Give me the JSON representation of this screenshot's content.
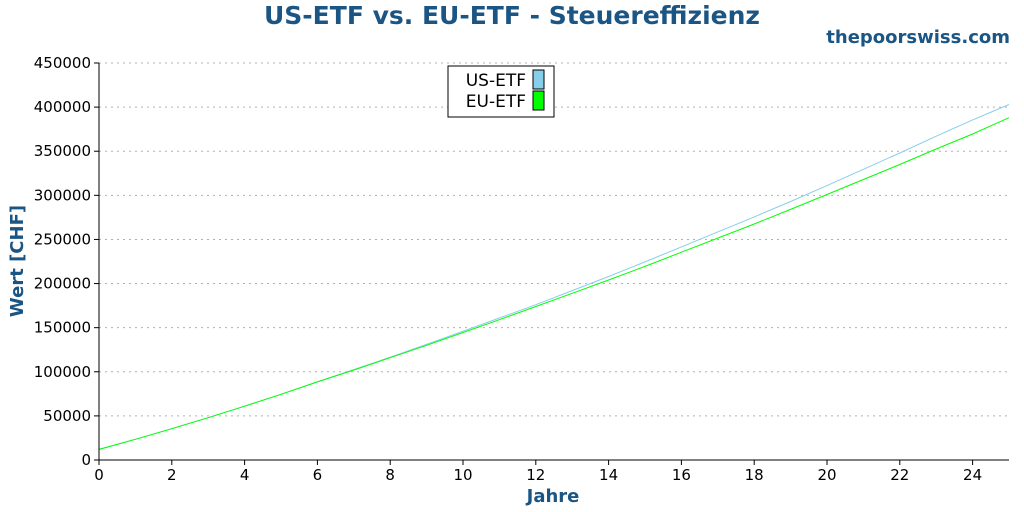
{
  "header": {
    "title": "US-ETF vs. EU-ETF - Steuereffizienz",
    "site": "thepoorswiss.com"
  },
  "colors": {
    "title": "#1b5583",
    "us_etf": "#87ceeb",
    "eu_etf": "#00ff00",
    "grid": "#b0b0b0"
  },
  "chart_data": {
    "type": "line",
    "title": "US-ETF vs. EU-ETF - Steuereffizienz",
    "xlabel": "Jahre",
    "ylabel": "Wert [CHF]",
    "xlim": [
      0,
      25
    ],
    "ylim": [
      0,
      450000
    ],
    "x_ticks": [
      0,
      2,
      4,
      6,
      8,
      10,
      12,
      14,
      16,
      18,
      20,
      22,
      24
    ],
    "y_ticks": [
      0,
      50000,
      100000,
      150000,
      200000,
      250000,
      300000,
      350000,
      400000,
      450000
    ],
    "grid": "horizontal dotted",
    "legend_position": "top-center",
    "x": [
      0,
      1,
      2,
      3,
      4,
      5,
      6,
      7,
      8,
      9,
      10,
      11,
      12,
      13,
      14,
      15,
      16,
      17,
      18,
      19,
      20,
      21,
      22,
      23,
      24,
      25
    ],
    "series": [
      {
        "name": "US-ETF",
        "color": "#87ceeb",
        "values": [
          12000,
          23500,
          35500,
          48000,
          61000,
          74500,
          88500,
          102500,
          116500,
          131000,
          146000,
          161000,
          176000,
          192000,
          208000,
          224500,
          241500,
          258500,
          275500,
          293000,
          311000,
          329500,
          348000,
          367000,
          385500,
          403000
        ]
      },
      {
        "name": "EU-ETF",
        "color": "#00ff00",
        "values": [
          12000,
          23500,
          35500,
          48000,
          61000,
          74500,
          88500,
          102000,
          116000,
          130000,
          144500,
          159000,
          174000,
          189000,
          204000,
          219500,
          235500,
          251500,
          267500,
          284000,
          301000,
          318000,
          335000,
          352500,
          369500,
          388000
        ]
      }
    ]
  }
}
